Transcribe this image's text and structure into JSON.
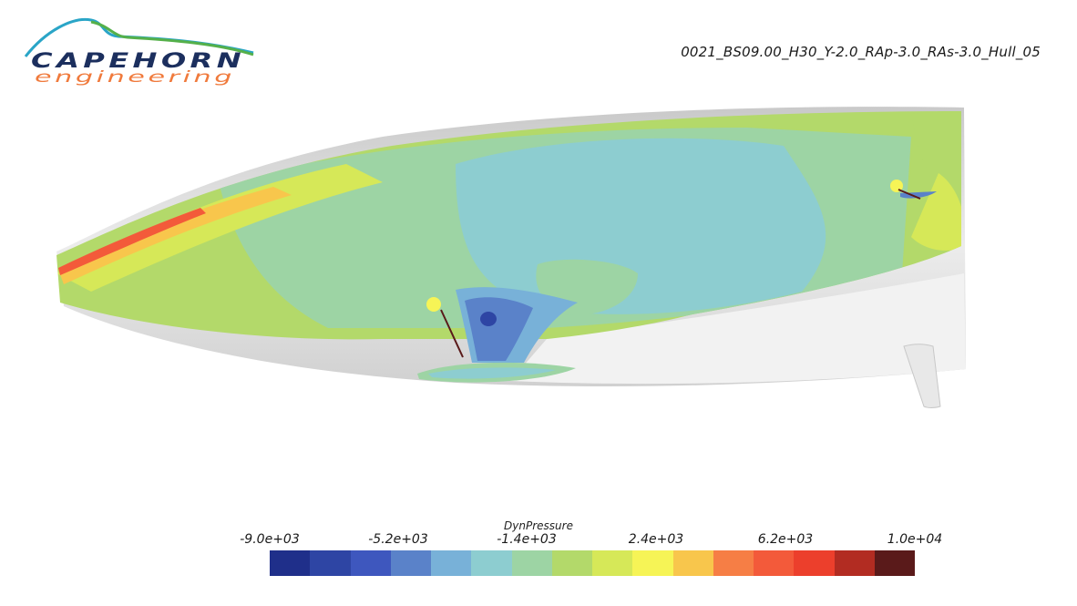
{
  "logo": {
    "line1": "CAPEHORN",
    "line2": "engineering"
  },
  "run_title": "0021_BS09.00_H30_Y-2.0_RAp-3.0_RAs-3.0_Hull_05",
  "legend": {
    "title": "DynPressure",
    "ticks": [
      "-9.0e+03",
      "-5.2e+03",
      "-1.4e+03",
      "2.4e+03",
      "6.2e+03",
      "1.0e+04"
    ],
    "colors": [
      "#1f2f8a",
      "#2e45a4",
      "#3e57be",
      "#5a82c9",
      "#78b1d8",
      "#8dcdd0",
      "#9dd4a4",
      "#b3d96a",
      "#d6e858",
      "#f6f456",
      "#f8c64c",
      "#f67e45",
      "#f35a3a",
      "#ec3f2c",
      "#b22c22",
      "#5a1a1a"
    ]
  },
  "colors": {
    "hull": "#d6d6d6",
    "logo_cyan": "#2aa5c7",
    "logo_green": "#55b04a",
    "logo_navy": "#1c2f5e",
    "logo_orange": "#f07a3c"
  }
}
